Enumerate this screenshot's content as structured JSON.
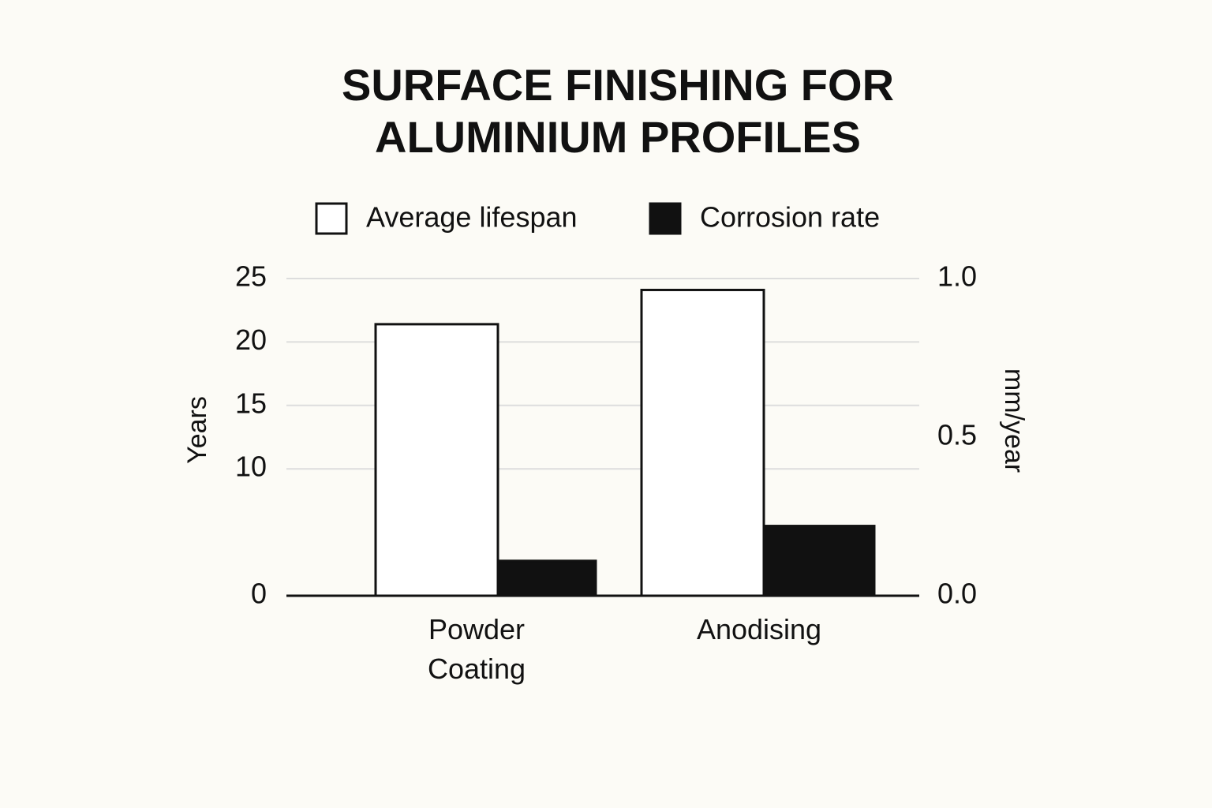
{
  "chart_data": {
    "type": "bar",
    "title": "SURFACE FINISHING FOR ALUMINIUM PROFILES",
    "categories": [
      "Powder Coating",
      "Anodising"
    ],
    "series": [
      {
        "name": "Average lifespan",
        "color": "#ffffff",
        "values": [
          21.4,
          24.1
        ]
      },
      {
        "name": "Corrosion rate",
        "color": "#111111",
        "values": [
          0.11,
          0.22
        ],
        "axis": "y2"
      }
    ],
    "y_label": "Years",
    "y2_label": "mm/year",
    "ylim": [
      0,
      25
    ],
    "yticks": [
      0,
      10,
      15,
      20,
      25
    ],
    "y2lim": [
      0,
      1
    ],
    "y2ticks": [
      {
        "value": 0,
        "label": "0.0"
      },
      0.5,
      {
        "value": 1,
        "label": "1.0"
      }
    ],
    "grid": true,
    "legend": "top"
  }
}
